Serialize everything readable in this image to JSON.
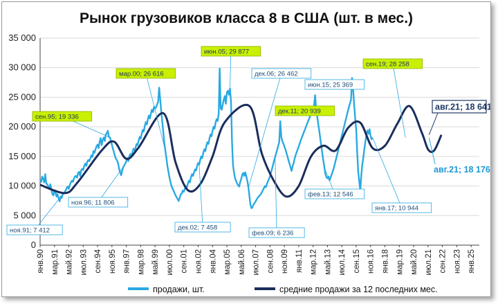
{
  "chart_data": {
    "type": "line",
    "title": "Рынок грузовиков класса 8 в США (шт. в мес.)",
    "ylim": [
      0,
      35000
    ],
    "y_ticks": [
      "0",
      "5 000",
      "10 000",
      "15 000",
      "20 000",
      "25 000",
      "30 000",
      "35 000"
    ],
    "x_ticks": [
      "янв.90",
      "мар.91",
      "май.92",
      "июл.93",
      "сен.94",
      "ноя.95",
      "янв.97",
      "мар.98",
      "май.99",
      "июл.00",
      "сен.01",
      "ноя.02",
      "янв.04",
      "мар.05",
      "май.06",
      "июл.07",
      "сен.08",
      "ноя.09",
      "янв.11",
      "мар.12",
      "май.13",
      "июл.14",
      "сен.15",
      "ноя.16",
      "янв.18",
      "мар.19",
      "май.20",
      "июл.21",
      "сен.22",
      "ноя.23",
      "янв.25"
    ],
    "x_range": [
      "янв.90",
      "сен.25"
    ],
    "grid": "horizontal",
    "legend_position": "bottom",
    "colors": {
      "sales": "#29a9e1",
      "avg": "#1b2d5c",
      "green_label_bg": "#c8f000",
      "navy": "#1f3864",
      "label_border": "#29a9e1"
    },
    "series": [
      {
        "name": "продажи, шт.",
        "x_start": "янв.90",
        "step": "month",
        "values": [
          11000,
          10700,
          11600,
          11200,
          10600,
          12000,
          10400,
          10300,
          9900,
          9500,
          10300,
          9400,
          8600,
          8400,
          9300,
          8900,
          8200,
          8600,
          7900,
          7412,
          8200,
          8000,
          8600,
          8700,
          9000,
          9300,
          9700,
          9900,
          9500,
          10200,
          10600,
          10900,
          10700,
          11300,
          11600,
          11700,
          11400,
          12200,
          12400,
          11700,
          12600,
          12900,
          12700,
          13400,
          13800,
          13400,
          14100,
          14400,
          14200,
          14700,
          15200,
          14900,
          15900,
          15600,
          16200,
          16700,
          17000,
          16400,
          17500,
          18100,
          16900,
          17800,
          18200,
          17600,
          18700,
          18900,
          19336,
          18300,
          18200,
          17600,
          16900,
          16300,
          15700,
          15000,
          14600,
          14300,
          13800,
          12900,
          12300,
          11806,
          12600,
          13200,
          13500,
          13800,
          14200,
          14700,
          14200,
          15100,
          15400,
          15100,
          15700,
          16300,
          16000,
          16500,
          17100,
          16900,
          17600,
          18300,
          18000,
          18800,
          19500,
          19200,
          20100,
          20800,
          20400,
          21300,
          21900,
          21400,
          22300,
          22900,
          22500,
          23400,
          23100,
          23300,
          23800,
          24200,
          26616,
          24700,
          22600,
          20900,
          19200,
          17400,
          16000,
          14800,
          13400,
          12400,
          11500,
          10700,
          10000,
          9600,
          9200,
          8800,
          8400,
          8100,
          7800,
          7458,
          8000,
          8600,
          8700,
          9200,
          9000,
          9500,
          10000,
          9800,
          10400,
          10900,
          10600,
          11500,
          12000,
          11700,
          12300,
          12800,
          12600,
          13400,
          13900,
          13600,
          14400,
          15000,
          14700,
          15600,
          16200,
          15900,
          16800,
          17400,
          17100,
          18000,
          18700,
          18400,
          19300,
          20000,
          19700,
          20700,
          21300,
          21000,
          22200,
          29877,
          23100,
          22900,
          23800,
          24600,
          25200,
          23900,
          25800,
          26100,
          25400,
          26462,
          24200,
          17600,
          13500,
          12200,
          11300,
          10800,
          10400,
          10100,
          9900,
          10700,
          11200,
          11900,
          12200,
          11700,
          12300,
          11600,
          10800,
          9700,
          8200,
          6800,
          6236,
          6400,
          6900,
          7100,
          7400,
          7700,
          8000,
          8200,
          8400,
          8600,
          8900,
          9300,
          9600,
          10000,
          9800,
          10300,
          10800,
          11200,
          11600,
          12300,
          12900,
          13600,
          14300,
          14900,
          15500,
          16100,
          16800,
          17400,
          20939,
          18300,
          17600,
          17200,
          16700,
          16200,
          15600,
          15000,
          14400,
          13800,
          13200,
          12546,
          13300,
          13900,
          14600,
          15200,
          15700,
          16200,
          16700,
          17200,
          17700,
          18200,
          18600,
          19100,
          19500,
          20000,
          20400,
          20900,
          21300,
          21800,
          22200,
          22700,
          23100,
          23600,
          25369,
          22900,
          21800,
          20500,
          19300,
          18100,
          16800,
          15500,
          14300,
          13100,
          12000,
          11500,
          11300,
          11600,
          10944,
          11400,
          11900,
          12400,
          12900,
          13600,
          14300,
          15000,
          15700,
          16400,
          17100,
          17800,
          18500,
          19200,
          19900,
          20600,
          21300,
          22000,
          22700,
          23400,
          24000,
          24600,
          28258,
          26400,
          23800,
          21500,
          19600,
          15800,
          12400,
          10800,
          9200,
          11900,
          13700,
          14800,
          16300,
          17500,
          18700,
          19400,
          18800,
          19600,
          18500,
          17900,
          18176
        ],
        "annotations": [
          {
            "x": "ноя.91",
            "text": "ноя.91; 7 412",
            "style": "white"
          },
          {
            "x": "сен.95",
            "text": "сен.95; 19 336",
            "style": "green"
          },
          {
            "x": "ноя.96",
            "text": "ноя.96; 11 806",
            "style": "white"
          },
          {
            "x": "мар.00",
            "text": "мар.00; 26 616",
            "style": "green"
          },
          {
            "x": "дек.02",
            "text": "дек.02; 7 458",
            "style": "white"
          },
          {
            "x": "июн.05",
            "text": "июн.05; 29 877",
            "style": "green"
          },
          {
            "x": "дек.06",
            "text": "дек.06; 26 462",
            "style": "white"
          },
          {
            "x": "фев.09",
            "text": "фев.09; 6 236",
            "style": "white"
          },
          {
            "x": "дек.11",
            "text": "дек.11; 20 939",
            "style": "green"
          },
          {
            "x": "фев.13",
            "text": "фев.13; 12 546",
            "style": "white"
          },
          {
            "x": "июн.15",
            "text": "июн.15; 25 369",
            "style": "white"
          },
          {
            "x": "янв.17",
            "text": "янв.17; 10 944",
            "style": "white"
          },
          {
            "x": "сен.19",
            "text": "сен.19; 28 258",
            "style": "green"
          },
          {
            "x": "авг.21",
            "text": "авг.21; 18 176",
            "style": "big-blue"
          }
        ]
      },
      {
        "name": "средние продажи за 12 последних мес.",
        "x_start": "янв.90",
        "step": "month",
        "points": [
          [
            0,
            10200
          ],
          [
            24,
            8800
          ],
          [
            36,
            10500
          ],
          [
            60,
            16000
          ],
          [
            72,
            17500
          ],
          [
            84,
            14600
          ],
          [
            96,
            16500
          ],
          [
            120,
            22300
          ],
          [
            132,
            14000
          ],
          [
            144,
            9300
          ],
          [
            156,
            10300
          ],
          [
            168,
            15000
          ],
          [
            180,
            20800
          ],
          [
            204,
            23500
          ],
          [
            216,
            15500
          ],
          [
            228,
            10800
          ],
          [
            240,
            8200
          ],
          [
            252,
            10000
          ],
          [
            264,
            15000
          ],
          [
            276,
            16800
          ],
          [
            288,
            16000
          ],
          [
            300,
            19800
          ],
          [
            312,
            20700
          ],
          [
            324,
            16400
          ],
          [
            336,
            16800
          ],
          [
            348,
            20500
          ],
          [
            360,
            23500
          ],
          [
            372,
            19000
          ],
          [
            378,
            16200
          ],
          [
            384,
            16000
          ],
          [
            391,
            18641
          ]
        ],
        "annotations": [
          {
            "x": "авг.21",
            "text": "авг.21; 18 641",
            "style": "navy-box"
          }
        ]
      }
    ]
  }
}
